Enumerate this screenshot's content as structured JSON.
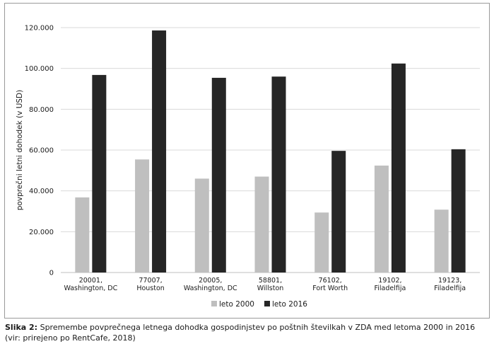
{
  "chart_data": {
    "type": "bar",
    "ylabel": "povprečni letni dohodek (v USD)",
    "xlabel": "",
    "ylim": [
      0,
      120000
    ],
    "yticks": [
      0,
      20000,
      40000,
      60000,
      80000,
      100000,
      120000
    ],
    "ytick_labels": [
      "0",
      "20.000",
      "40.000",
      "60.000",
      "80.000",
      "100.000",
      "120.000"
    ],
    "grid": true,
    "legend_position": "bottom",
    "categories": [
      [
        "20001,",
        "Washington, DC"
      ],
      [
        "77007,",
        "Houston"
      ],
      [
        "20005,",
        "Washington, DC"
      ],
      [
        "58801,",
        "Willston"
      ],
      [
        "76102,",
        "Fort Worth"
      ],
      [
        "19102,",
        "Filadelfija"
      ],
      [
        "19123,",
        "Filadelfija"
      ]
    ],
    "series": [
      {
        "name": "leto 2000",
        "color": "#bfbfbf",
        "values": [
          36800,
          55400,
          46000,
          47000,
          29400,
          52400,
          30800
        ]
      },
      {
        "name": "leto 2016",
        "color": "#262626",
        "values": [
          96800,
          118600,
          95400,
          96000,
          59600,
          102400,
          60400
        ]
      }
    ]
  },
  "caption": {
    "label": "Slika 2:",
    "text": "Spremembe povprečnega letnega dohodka gospodinjstev po poštnih številkah v ZDA med letoma 2000 in 2016 (vir: prirejeno po RentCafe, 2018)"
  },
  "colors": {
    "gridline": "#d9d9d9",
    "axis": "#bfbfbf",
    "frame": "#9a9a9a"
  }
}
